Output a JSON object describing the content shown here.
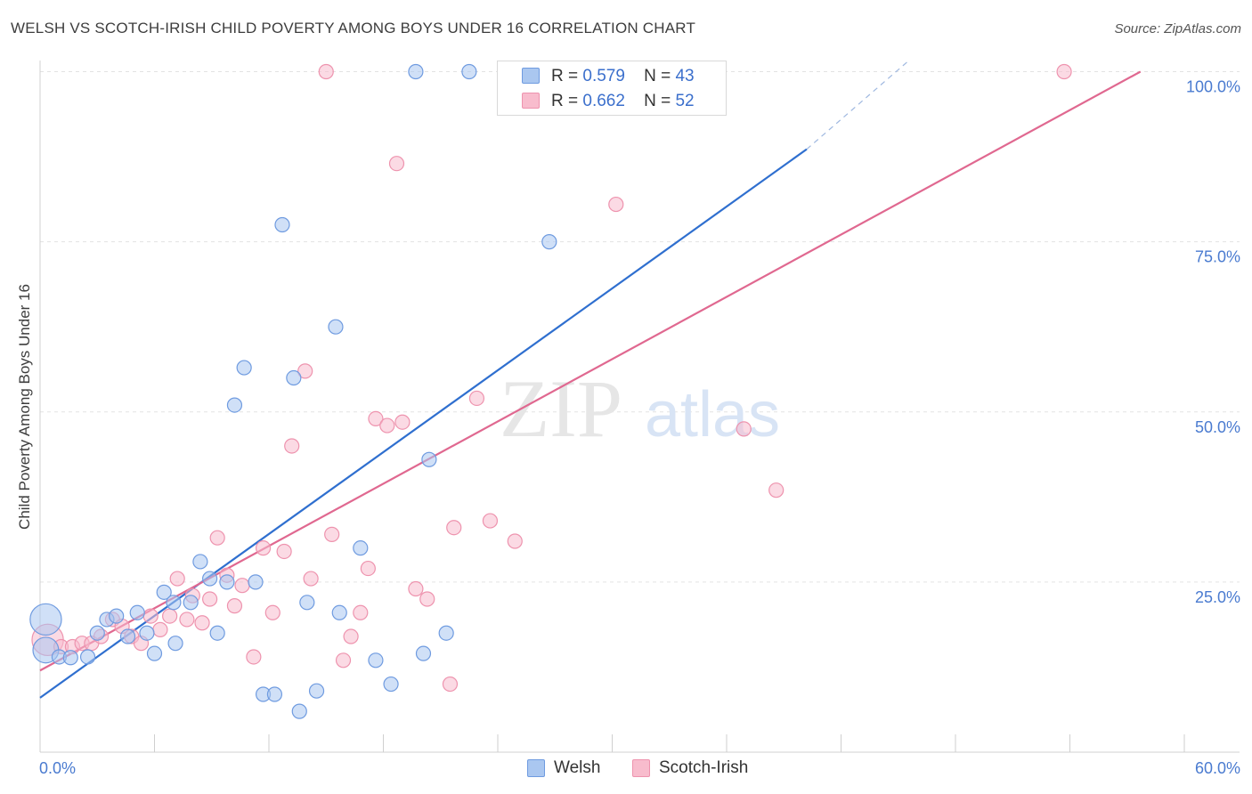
{
  "header": {
    "title": "WELSH VS SCOTCH-IRISH CHILD POVERTY AMONG BOYS UNDER 16 CORRELATION CHART",
    "source": "Source: ZipAtlas.com"
  },
  "watermark": {
    "zip": "ZIP",
    "atlas": "atlas"
  },
  "legend": {
    "welsh": {
      "r_label": "R =",
      "r_value": "0.579",
      "n_label": "N =",
      "n_value": "43",
      "name": "Welsh"
    },
    "scotch_irish": {
      "r_label": "R =",
      "r_value": "0.662",
      "n_label": "N =",
      "n_value": "52",
      "name": "Scotch-Irish"
    }
  },
  "colors": {
    "welsh_fill": "#aac7f0",
    "welsh_stroke": "#6f9be0",
    "welsh_line": "#2f6fcf",
    "scotch_fill": "#f8bccd",
    "scotch_stroke": "#ee93ae",
    "scotch_line": "#e06890",
    "tick_label": "#4a7bd0"
  },
  "chart_data": {
    "type": "scatter",
    "title": "WELSH VS SCOTCH-IRISH CHILD POVERTY AMONG BOYS UNDER 16 CORRELATION CHART",
    "xlabel": "",
    "ylabel": "Child Poverty Among Boys Under 16",
    "xlim": [
      0,
      60
    ],
    "ylim": [
      0,
      100
    ],
    "x_tick_labels": [
      "0.0%",
      "60.0%"
    ],
    "y_tick_labels": [
      "25.0%",
      "50.0%",
      "75.0%",
      "100.0%"
    ],
    "y_ticks": [
      25,
      50,
      75,
      100
    ],
    "grid": true,
    "legend_position": "top-center",
    "series": [
      {
        "name": "Welsh",
        "r": 0.579,
        "n": 43,
        "trend": {
          "x": [
            0,
            40.2
          ],
          "y": [
            8.0,
            88.6
          ],
          "dashed_to": [
            45.5,
            101.5
          ]
        },
        "points": [
          [
            0.3,
            19.5,
            2.2
          ],
          [
            0.3,
            15.0,
            1.8
          ],
          [
            1.0,
            14.0,
            1
          ],
          [
            1.6,
            13.9,
            1
          ],
          [
            2.5,
            14.0,
            1
          ],
          [
            3.0,
            17.5,
            1
          ],
          [
            3.5,
            19.5,
            1
          ],
          [
            4.0,
            20.0,
            1
          ],
          [
            4.6,
            17.0,
            1
          ],
          [
            5.1,
            20.5,
            1
          ],
          [
            5.6,
            17.5,
            1
          ],
          [
            6.0,
            14.5,
            1
          ],
          [
            6.5,
            23.5,
            1
          ],
          [
            7.0,
            22.0,
            1
          ],
          [
            7.1,
            16.0,
            1
          ],
          [
            7.9,
            22.0,
            1
          ],
          [
            8.4,
            28.0,
            1
          ],
          [
            8.9,
            25.5,
            1
          ],
          [
            9.3,
            17.5,
            1
          ],
          [
            9.8,
            25.0,
            1
          ],
          [
            10.2,
            51.0,
            1
          ],
          [
            10.7,
            56.5,
            1
          ],
          [
            11.3,
            25.0,
            1
          ],
          [
            11.7,
            8.5,
            1
          ],
          [
            12.3,
            8.5,
            1
          ],
          [
            12.7,
            77.5,
            1
          ],
          [
            13.3,
            55.0,
            1
          ],
          [
            13.6,
            6.0,
            1
          ],
          [
            14.0,
            22.0,
            1
          ],
          [
            14.5,
            9.0,
            1
          ],
          [
            15.5,
            62.5,
            1
          ],
          [
            15.7,
            20.5,
            1
          ],
          [
            16.8,
            30.0,
            1
          ],
          [
            17.6,
            13.5,
            1
          ],
          [
            18.4,
            10.0,
            1
          ],
          [
            19.7,
            100.0,
            1
          ],
          [
            20.1,
            14.5,
            1
          ],
          [
            20.4,
            43.0,
            1
          ],
          [
            21.3,
            17.5,
            1
          ],
          [
            22.5,
            100.0,
            1
          ],
          [
            26.7,
            75.0,
            1
          ],
          [
            32.0,
            100.0,
            1
          ],
          [
            26.0,
            20.0,
            0
          ]
        ]
      },
      {
        "name": "Scotch-Irish",
        "r": 0.662,
        "n": 52,
        "trend": {
          "x": [
            0,
            57.7
          ],
          "y": [
            12.0,
            100.0
          ]
        },
        "points": [
          [
            0.4,
            16.5,
            2.2
          ],
          [
            1.1,
            15.5,
            1
          ],
          [
            1.7,
            15.5,
            1
          ],
          [
            2.2,
            16.0,
            1
          ],
          [
            2.7,
            16.0,
            1
          ],
          [
            3.2,
            17.0,
            1
          ],
          [
            3.8,
            19.5,
            1
          ],
          [
            4.3,
            18.5,
            1
          ],
          [
            4.8,
            17.0,
            1
          ],
          [
            5.3,
            16.0,
            1
          ],
          [
            5.8,
            20.0,
            1
          ],
          [
            6.3,
            18.0,
            1
          ],
          [
            6.8,
            20.0,
            1
          ],
          [
            7.2,
            25.5,
            1
          ],
          [
            7.7,
            19.5,
            1
          ],
          [
            8.0,
            23.0,
            1
          ],
          [
            8.5,
            19.0,
            1
          ],
          [
            8.9,
            22.5,
            1
          ],
          [
            9.3,
            31.5,
            1
          ],
          [
            9.8,
            26.0,
            1
          ],
          [
            10.2,
            21.5,
            1
          ],
          [
            10.6,
            24.5,
            1
          ],
          [
            11.2,
            14.0,
            1
          ],
          [
            11.7,
            30.0,
            1
          ],
          [
            12.2,
            20.5,
            1
          ],
          [
            12.8,
            29.5,
            1
          ],
          [
            13.2,
            45.0,
            1
          ],
          [
            13.9,
            56.0,
            1
          ],
          [
            14.2,
            25.5,
            1
          ],
          [
            15.0,
            100.0,
            1
          ],
          [
            15.3,
            32.0,
            1
          ],
          [
            15.9,
            13.5,
            1
          ],
          [
            16.3,
            17.0,
            1
          ],
          [
            16.8,
            20.5,
            1
          ],
          [
            17.2,
            27.0,
            1
          ],
          [
            17.6,
            49.0,
            1
          ],
          [
            18.2,
            48.0,
            1
          ],
          [
            18.7,
            86.5,
            1
          ],
          [
            19.0,
            48.5,
            1
          ],
          [
            19.7,
            24.0,
            1
          ],
          [
            20.3,
            22.5,
            1
          ],
          [
            21.5,
            10.0,
            1
          ],
          [
            21.7,
            33.0,
            1
          ],
          [
            22.9,
            52.0,
            1
          ],
          [
            23.6,
            34.0,
            1
          ],
          [
            24.9,
            31.0,
            1
          ],
          [
            30.2,
            80.5,
            1
          ],
          [
            36.9,
            47.5,
            1
          ],
          [
            38.6,
            38.5,
            1
          ],
          [
            53.7,
            100.0,
            1
          ],
          [
            10.2,
            27.0,
            0
          ],
          [
            7.5,
            20.0,
            0
          ]
        ]
      }
    ]
  }
}
